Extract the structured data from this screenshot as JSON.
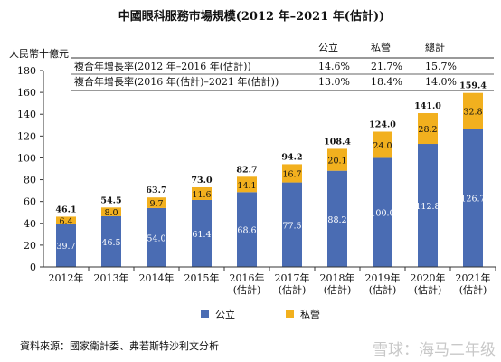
{
  "chart_data": {
    "type": "bar",
    "stacked": true,
    "title": "中國眼科服務市場規模(2012 年–2021 年(估計))",
    "ylabel": "人民幣十億元",
    "ylim": [
      0,
      180
    ],
    "yticks": [
      0,
      20,
      40,
      60,
      80,
      100,
      120,
      140,
      160,
      180
    ],
    "grid": false,
    "legend_position": "bottom-center",
    "categories": [
      "2012年",
      "2013年",
      "2014年",
      "2015年",
      "2016年\n(估計)",
      "2017年\n(估計)",
      "2018年\n(估計)",
      "2019年\n(估計)",
      "2020年\n(估計)",
      "2021年\n(估計)"
    ],
    "series": [
      {
        "name": "公立",
        "color": "#4a6cb3",
        "values": [
          39.7,
          46.5,
          54.0,
          61.4,
          68.6,
          77.5,
          88.2,
          100.0,
          112.8,
          126.7
        ],
        "labels": [
          "39.7",
          "46.5",
          "54.0",
          "61.4",
          "68.6",
          "77.5",
          "88.2",
          "100.0",
          "112.8",
          "126.7"
        ]
      },
      {
        "name": "私營",
        "color": "#f2b01e",
        "values": [
          6.4,
          8.0,
          9.7,
          11.6,
          14.1,
          16.7,
          20.1,
          24.0,
          28.2,
          32.8
        ],
        "labels": [
          "6.4",
          "8.0",
          "9.7",
          "11.6",
          "14.1",
          "16.7",
          "20.1",
          "24.0",
          "28.2",
          "32.8"
        ]
      }
    ],
    "totals": [
      "46.1",
      "54.5",
      "63.7",
      "73.0",
      "82.7",
      "94.2",
      "108.4",
      "124.0",
      "141.0",
      "159.4"
    ],
    "table": {
      "header": [
        "公立",
        "私營",
        "總計"
      ],
      "rows": [
        {
          "label": "複合年增長率(2012 年–2016 年(估計))",
          "values": [
            "14.6%",
            "21.7%",
            "15.7%"
          ]
        },
        {
          "label": "複合年增長率(2016 年(估計)–2021 年(估計))",
          "values": [
            "13.0%",
            "18.4%",
            "14.0%"
          ]
        }
      ]
    }
  },
  "source_note": "資料來源：國家衛計委、弗若斯特沙利文分析",
  "watermark": "雪球：海马二年级"
}
